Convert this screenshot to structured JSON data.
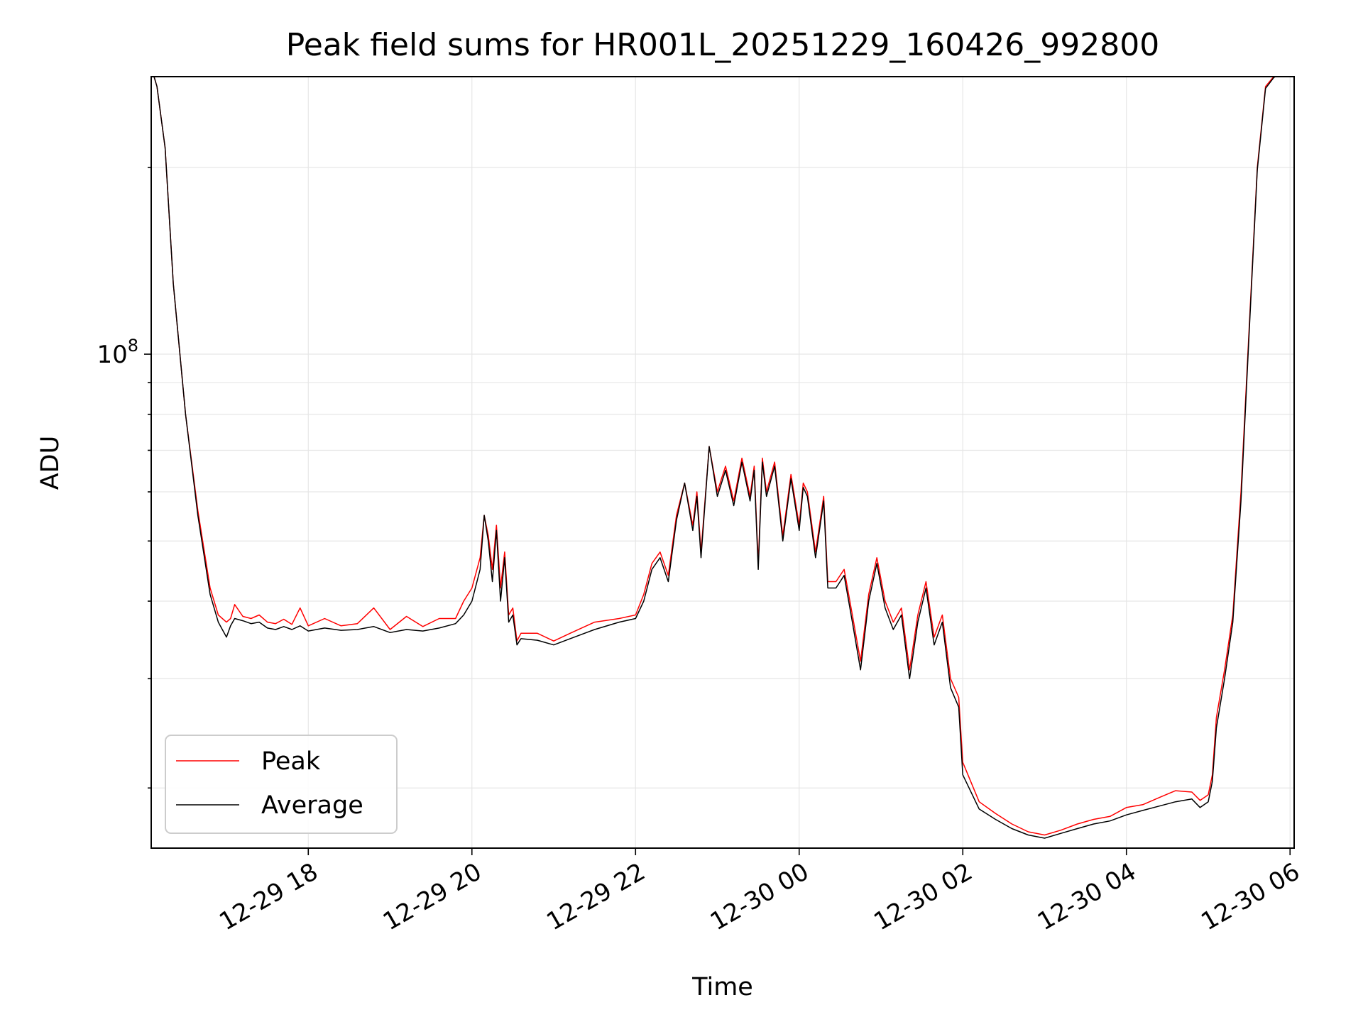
{
  "chart_data": {
    "type": "line",
    "title": "Peak field sums for HR001L_20251229_160426_992800",
    "xlabel": "Time",
    "ylabel": "ADU",
    "yscale": "log",
    "x_unit": "hours since 12-29 18:00",
    "xlim": [
      -1.92,
      12.05
    ],
    "ylim": [
      16000000,
      280000000
    ],
    "grid": true,
    "x_ticks": [
      {
        "value": 0,
        "label": "12-29 18"
      },
      {
        "value": 2,
        "label": "12-29 20"
      },
      {
        "value": 4,
        "label": "12-29 22"
      },
      {
        "value": 6,
        "label": "12-30 00"
      },
      {
        "value": 8,
        "label": "12-30 02"
      },
      {
        "value": 10,
        "label": "12-30 04"
      },
      {
        "value": 12,
        "label": "12-30 06"
      }
    ],
    "y_major_ticks": [
      {
        "value": 100000000,
        "base": "10",
        "exp": "8"
      }
    ],
    "y_minor_ticks": [
      20000000,
      30000000,
      40000000,
      50000000,
      60000000,
      70000000,
      80000000,
      90000000,
      200000000
    ],
    "legend": {
      "location": "lower left",
      "entries": [
        {
          "label": "Peak",
          "color": "#ff0000"
        },
        {
          "label": "Average",
          "color": "#000000"
        }
      ]
    },
    "series": [
      {
        "name": "Peak",
        "color": "#ff0000",
        "x": [
          -1.92,
          -1.85,
          -1.75,
          -1.65,
          -1.5,
          -1.35,
          -1.2,
          -1.1,
          -1.0,
          -0.95,
          -0.9,
          -0.8,
          -0.7,
          -0.6,
          -0.5,
          -0.4,
          -0.3,
          -0.2,
          -0.1,
          0.0,
          0.2,
          0.4,
          0.6,
          0.8,
          1.0,
          1.2,
          1.4,
          1.6,
          1.8,
          1.9,
          2.0,
          2.1,
          2.15,
          2.2,
          2.25,
          2.3,
          2.35,
          2.4,
          2.45,
          2.5,
          2.55,
          2.6,
          2.8,
          3.0,
          3.2,
          3.5,
          3.8,
          4.0,
          4.1,
          4.2,
          4.3,
          4.4,
          4.5,
          4.6,
          4.7,
          4.75,
          4.8,
          4.9,
          5.0,
          5.1,
          5.2,
          5.3,
          5.4,
          5.45,
          5.5,
          5.55,
          5.6,
          5.7,
          5.8,
          5.9,
          6.0,
          6.05,
          6.1,
          6.2,
          6.3,
          6.35,
          6.45,
          6.55,
          6.65,
          6.75,
          6.85,
          6.95,
          7.05,
          7.15,
          7.25,
          7.35,
          7.45,
          7.55,
          7.65,
          7.75,
          7.85,
          7.95,
          8.0,
          8.2,
          8.4,
          8.6,
          8.8,
          9.0,
          9.2,
          9.4,
          9.6,
          9.8,
          10.0,
          10.2,
          10.4,
          10.6,
          10.8,
          10.9,
          11.0,
          11.05,
          11.1,
          11.2,
          11.3,
          11.4,
          11.5,
          11.6,
          11.7,
          11.8,
          11.9,
          12.05
        ],
        "y": [
          290000000,
          270000000,
          215000000,
          130000000,
          80000000,
          56000000,
          42000000,
          38000000,
          37000000,
          37500000,
          39500000,
          37800000,
          37500000,
          38000000,
          37000000,
          36800000,
          37400000,
          36700000,
          39000000,
          36500000,
          37500000,
          36500000,
          36800000,
          39000000,
          36000000,
          37800000,
          36400000,
          37500000,
          37500000,
          40000000,
          42000000,
          47000000,
          55000000,
          51000000,
          45000000,
          53000000,
          42000000,
          48000000,
          38000000,
          39000000,
          34500000,
          35500000,
          35500000,
          34500000,
          35500000,
          37000000,
          37500000,
          38000000,
          41000000,
          46000000,
          48000000,
          44000000,
          55000000,
          62000000,
          53000000,
          60000000,
          48000000,
          71000000,
          60000000,
          66000000,
          58000000,
          68000000,
          59000000,
          66000000,
          46000000,
          68000000,
          60000000,
          67000000,
          51000000,
          64000000,
          53000000,
          62000000,
          60000000,
          48000000,
          59000000,
          43000000,
          43000000,
          45000000,
          38000000,
          32000000,
          41000000,
          47000000,
          40000000,
          37000000,
          39000000,
          31000000,
          38000000,
          43000000,
          35000000,
          38000000,
          30000000,
          28000000,
          22000000,
          19000000,
          18200000,
          17500000,
          17000000,
          16800000,
          17100000,
          17500000,
          17800000,
          18000000,
          18600000,
          18800000,
          19300000,
          19800000,
          19700000,
          19100000,
          19500000,
          21000000,
          26000000,
          31000000,
          38000000,
          60000000,
          110000000,
          200000000,
          270000000,
          280000000,
          285000000,
          290000000
        ]
      },
      {
        "name": "Average",
        "color": "#000000",
        "x": [
          -1.92,
          -1.85,
          -1.75,
          -1.65,
          -1.5,
          -1.35,
          -1.2,
          -1.1,
          -1.0,
          -0.95,
          -0.9,
          -0.8,
          -0.7,
          -0.6,
          -0.5,
          -0.4,
          -0.3,
          -0.2,
          -0.1,
          0.0,
          0.2,
          0.4,
          0.6,
          0.8,
          1.0,
          1.2,
          1.4,
          1.6,
          1.8,
          1.9,
          2.0,
          2.1,
          2.15,
          2.2,
          2.25,
          2.3,
          2.35,
          2.4,
          2.45,
          2.5,
          2.55,
          2.6,
          2.8,
          3.0,
          3.2,
          3.5,
          3.8,
          4.0,
          4.1,
          4.2,
          4.3,
          4.4,
          4.5,
          4.6,
          4.7,
          4.75,
          4.8,
          4.9,
          5.0,
          5.1,
          5.2,
          5.3,
          5.4,
          5.45,
          5.5,
          5.55,
          5.6,
          5.7,
          5.8,
          5.9,
          6.0,
          6.05,
          6.1,
          6.2,
          6.3,
          6.35,
          6.45,
          6.55,
          6.65,
          6.75,
          6.85,
          6.95,
          7.05,
          7.15,
          7.25,
          7.35,
          7.45,
          7.55,
          7.65,
          7.75,
          7.85,
          7.95,
          8.0,
          8.2,
          8.4,
          8.6,
          8.8,
          9.0,
          9.2,
          9.4,
          9.6,
          9.8,
          10.0,
          10.2,
          10.4,
          10.6,
          10.8,
          10.9,
          11.0,
          11.05,
          11.1,
          11.2,
          11.3,
          11.4,
          11.5,
          11.6,
          11.7,
          11.8,
          11.9,
          12.05
        ],
        "y": [
          290000000,
          270000000,
          215000000,
          130000000,
          80000000,
          55000000,
          41000000,
          37000000,
          35000000,
          36500000,
          37500000,
          37200000,
          36800000,
          37000000,
          36200000,
          36000000,
          36400000,
          36000000,
          36500000,
          35800000,
          36200000,
          35900000,
          36000000,
          36400000,
          35600000,
          36000000,
          35800000,
          36200000,
          36800000,
          38000000,
          40000000,
          45000000,
          55000000,
          50000000,
          43000000,
          52000000,
          40000000,
          47000000,
          37000000,
          38000000,
          34000000,
          34800000,
          34600000,
          34000000,
          34800000,
          36000000,
          37000000,
          37500000,
          40000000,
          45000000,
          47000000,
          43000000,
          54000000,
          62000000,
          52000000,
          59000000,
          47000000,
          71000000,
          59000000,
          65000000,
          57000000,
          67000000,
          58000000,
          65000000,
          45000000,
          67000000,
          59000000,
          66000000,
          50000000,
          63000000,
          52000000,
          61000000,
          59000000,
          47000000,
          58000000,
          42000000,
          42000000,
          44000000,
          37000000,
          31000000,
          40000000,
          46000000,
          39000000,
          36000000,
          38000000,
          30000000,
          37000000,
          42000000,
          34000000,
          37000000,
          29000000,
          27000000,
          21000000,
          18500000,
          17800000,
          17200000,
          16800000,
          16600000,
          16900000,
          17200000,
          17500000,
          17700000,
          18100000,
          18400000,
          18700000,
          19000000,
          19200000,
          18600000,
          19000000,
          20500000,
          25000000,
          30000000,
          37000000,
          58000000,
          108000000,
          198000000,
          268000000,
          279000000,
          284000000,
          290000000
        ]
      }
    ]
  }
}
